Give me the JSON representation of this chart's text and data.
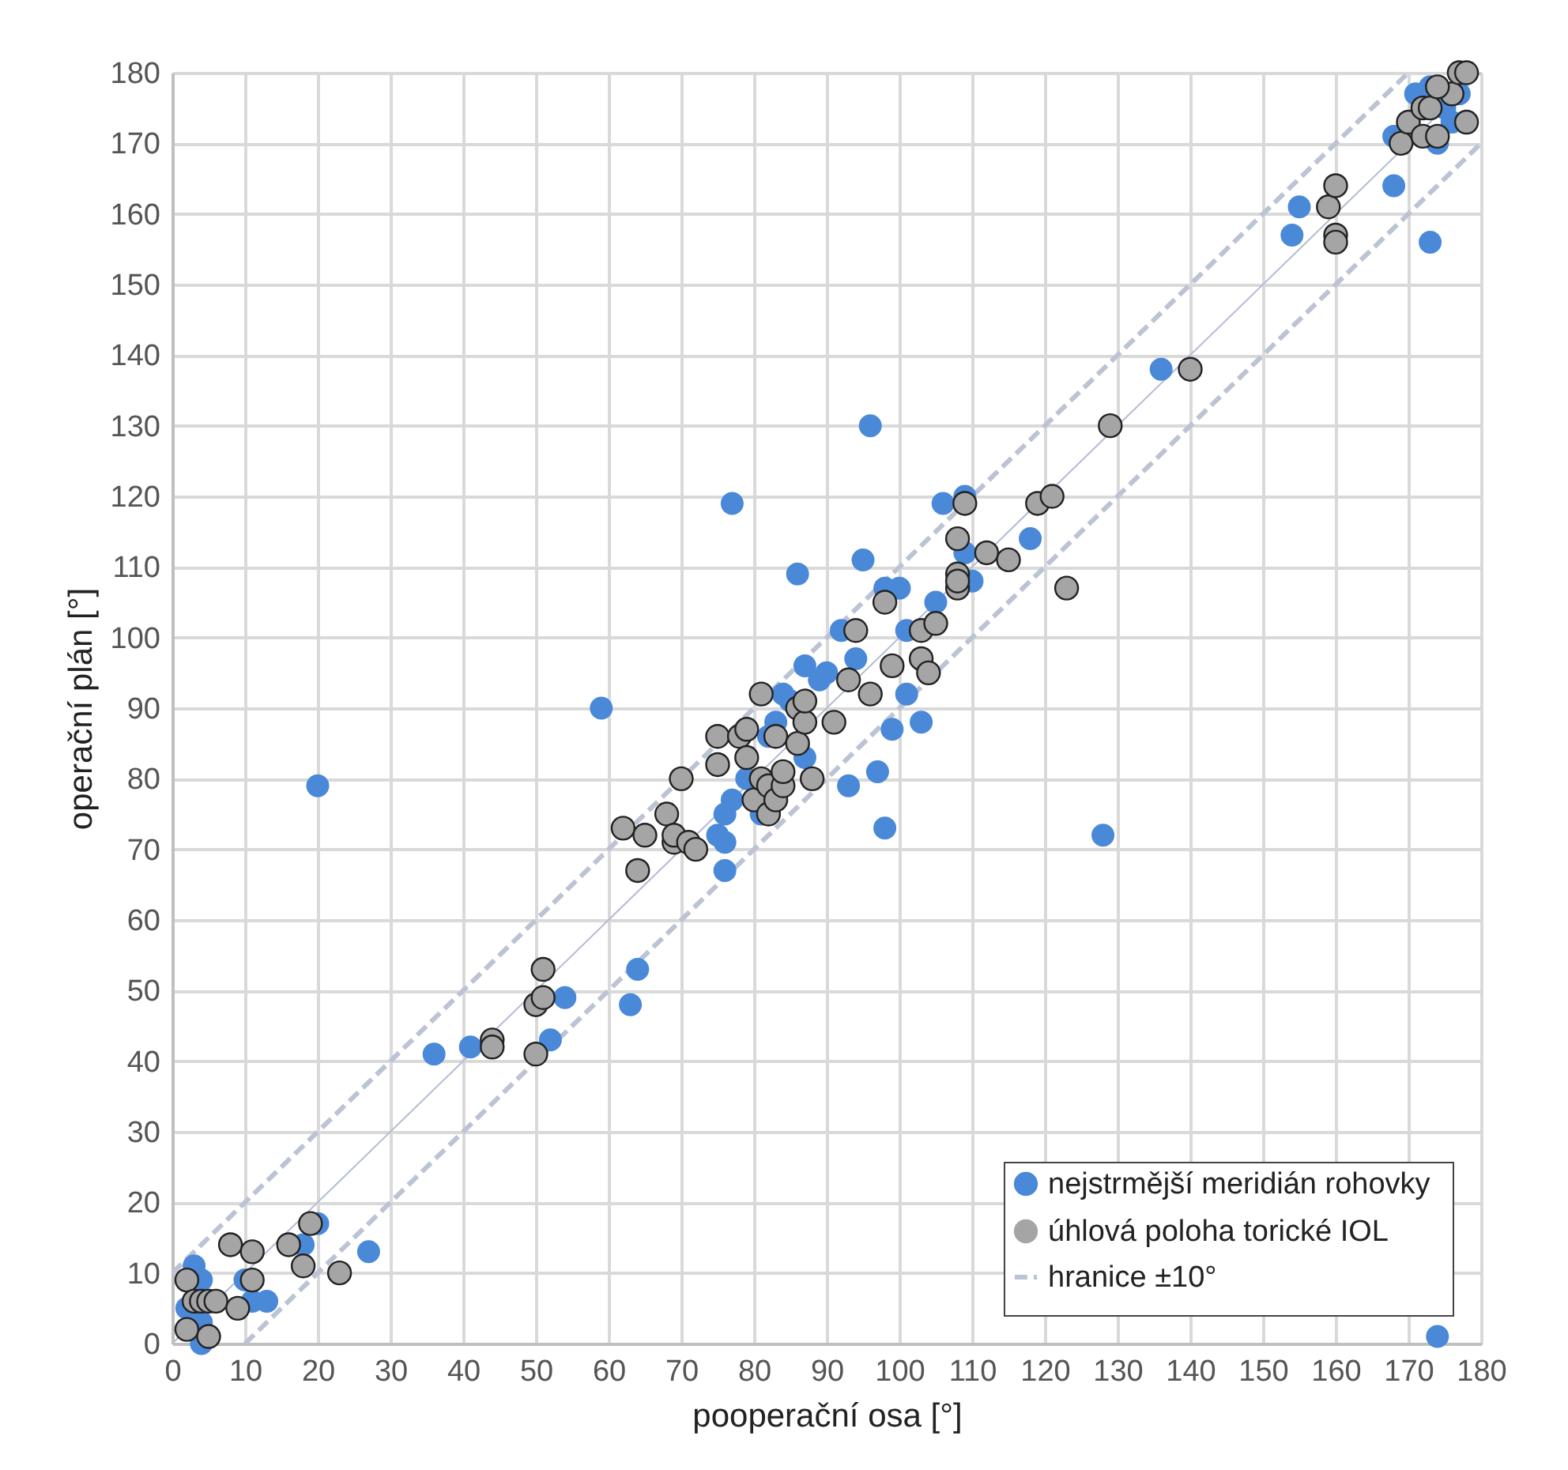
{
  "chart_data": {
    "type": "scatter",
    "xlabel": "pooperační osa [°]",
    "ylabel": "operační plán [°]",
    "xlim": [
      0,
      180
    ],
    "ylim": [
      0,
      180
    ],
    "xticks": [
      0,
      10,
      20,
      30,
      40,
      50,
      60,
      70,
      80,
      90,
      100,
      110,
      120,
      130,
      140,
      150,
      160,
      170,
      180
    ],
    "yticks": [
      0,
      10,
      20,
      30,
      40,
      50,
      60,
      70,
      80,
      90,
      100,
      110,
      120,
      130,
      140,
      150,
      160,
      170,
      180
    ],
    "grid": true,
    "legend": "bottom right",
    "series": [
      {
        "name": "nejstrmější meridián rohovky",
        "color": "#4a88d8",
        "marker": "circle",
        "x": [
          20,
          59,
          77,
          96,
          86,
          95,
          128,
          174,
          173,
          136,
          154,
          155,
          168,
          168,
          171,
          173,
          174,
          175,
          176,
          177,
          106,
          109,
          109,
          118,
          110,
          105,
          103,
          97,
          98,
          93,
          99,
          101,
          101,
          100,
          98,
          92,
          94,
          90,
          89,
          87,
          85,
          87,
          79,
          81,
          77,
          76,
          76,
          75,
          76,
          82,
          83,
          84,
          36,
          41,
          54,
          52,
          63,
          64,
          27,
          20,
          18,
          3,
          4,
          2,
          4,
          4,
          10,
          11,
          13
        ],
        "values": [
          79,
          90,
          119,
          130,
          109,
          111,
          72,
          1,
          156,
          138,
          157,
          161,
          164,
          171,
          177,
          178,
          170,
          175,
          173,
          177,
          119,
          120,
          112,
          114,
          108,
          105,
          88,
          81,
          73,
          79,
          87,
          92,
          101,
          107,
          107,
          101,
          97,
          95,
          94,
          96,
          91,
          83,
          80,
          75,
          77,
          75,
          71,
          72,
          67,
          86,
          88,
          92,
          41,
          42,
          49,
          43,
          48,
          53,
          13,
          17,
          14,
          11,
          9,
          5,
          3,
          0,
          9,
          6,
          6
        ]
      },
      {
        "name": "úhlová poloha torické IOL",
        "color": "#a5a5a5",
        "marker": "circle",
        "x": [
          2,
          2,
          3,
          4,
          5,
          6,
          5,
          9,
          8,
          11,
          11,
          16,
          18,
          19,
          23,
          44,
          44,
          50,
          51,
          51,
          50,
          62,
          64,
          65,
          68,
          69,
          69,
          70,
          71,
          72,
          75,
          75,
          78,
          79,
          79,
          80,
          81,
          81,
          82,
          82,
          83,
          84,
          83,
          84,
          86,
          86,
          87,
          87,
          88,
          91,
          93,
          94,
          96,
          98,
          99,
          103,
          103,
          104,
          105,
          108,
          108,
          108,
          109,
          108,
          112,
          115,
          119,
          121,
          123,
          129,
          140,
          159,
          160,
          160,
          160,
          169,
          170,
          172,
          172,
          173,
          174,
          176,
          177,
          178,
          178,
          174
        ],
        "values": [
          9,
          2,
          6,
          6,
          6,
          6,
          1,
          5,
          14,
          13,
          9,
          14,
          11,
          17,
          10,
          43,
          42,
          48,
          53,
          49,
          41,
          73,
          67,
          72,
          75,
          71,
          72,
          80,
          71,
          70,
          86,
          82,
          86,
          87,
          83,
          77,
          80,
          92,
          79,
          75,
          77,
          79,
          86,
          81,
          90,
          85,
          88,
          91,
          80,
          88,
          94,
          101,
          92,
          105,
          96,
          97,
          101,
          95,
          102,
          107,
          109,
          114,
          119,
          108,
          112,
          111,
          119,
          120,
          107,
          130,
          138,
          161,
          164,
          157,
          156,
          170,
          173,
          171,
          175,
          175,
          171,
          177,
          180,
          180,
          173,
          178
        ]
      },
      {
        "name": "hranice ±10°",
        "color": "#bcc3d4",
        "type": "line",
        "marker": "none",
        "line_style": "dashed",
        "x": [
          0,
          170,
          null,
          10,
          180
        ],
        "values": [
          10,
          180,
          null,
          0,
          170
        ]
      },
      {
        "color": "#b4bcd4",
        "type": "line",
        "marker": "none",
        "line_style": "solid",
        "x": [
          0,
          180
        ],
        "values": [
          0,
          180
        ]
      }
    ]
  }
}
